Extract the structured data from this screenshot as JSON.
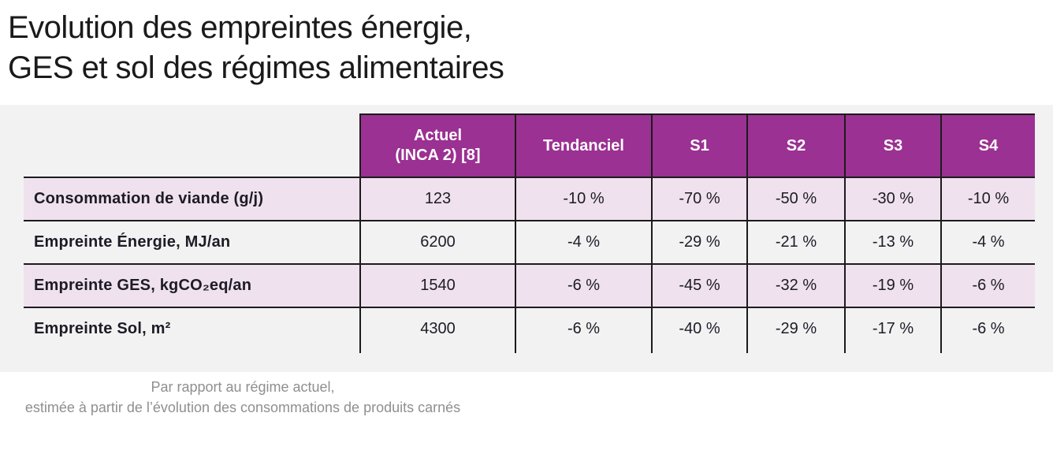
{
  "title": {
    "line1": "Evolution des empreintes énergie,",
    "line2": "GES et sol des régimes alimentaires"
  },
  "table": {
    "columns": [
      "Actuel\n(INCA 2) [8]",
      "Tendanciel",
      "S1",
      "S2",
      "S3",
      "S4"
    ],
    "rows": [
      {
        "label": "Consommation de viande (g/j)",
        "values": [
          "123",
          "-10 %",
          "-70 %",
          "-50 %",
          "-30 %",
          "-10 %"
        ]
      },
      {
        "label": "Empreinte Énergie, MJ/an",
        "values": [
          "6200",
          "-4 %",
          "-29 %",
          "-21 %",
          "-13 %",
          "-4 %"
        ]
      },
      {
        "label": "Empreinte GES, kgCO₂eq/an",
        "values": [
          "1540",
          "-6 %",
          "-45 %",
          "-32 %",
          "-19 %",
          "-6 %"
        ]
      },
      {
        "label": "Empreinte Sol, m²",
        "values": [
          "4300",
          "-6 %",
          "-40 %",
          "-29 %",
          "-17 %",
          "-6 %"
        ]
      }
    ]
  },
  "footnote": {
    "line1": "Par rapport au régime actuel,",
    "line2": "estimée à partir de l’évolution des consommations de produits carnés"
  },
  "colors": {
    "header_bg": "#9b3192",
    "row_pink": "#f0e1ef",
    "band_gray": "#f2f2f3",
    "border": "#1b1b1b",
    "footnote_text": "#8f8f8f",
    "title_text": "#1a1a1a"
  }
}
